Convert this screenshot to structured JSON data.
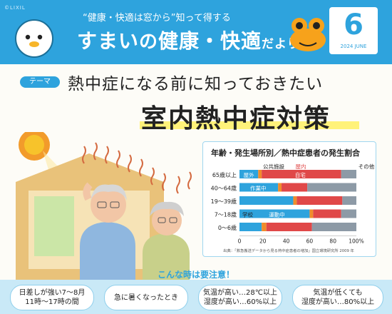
{
  "header": {
    "brand": "©LIXIL",
    "tagline": "“健康・快適は窓から”知って得する",
    "title_a": "すまい",
    "title_b": "の",
    "title_c": "健康・快適",
    "title_d": "だより",
    "month": "6",
    "month_sub": "2024 JUNE"
  },
  "theme": {
    "label": "テーマ",
    "headline1": "熱中症になる前に知っておきたい",
    "headline2": "室内熱中症対策"
  },
  "chart_data": {
    "type": "bar",
    "stacked": true,
    "orientation": "horizontal",
    "title": "年齢・発生場所別／熱中症患者の発生割合",
    "categories": [
      "65歳以上",
      "40〜64歳",
      "19〜39歳",
      "7〜18歳",
      "0〜6歳"
    ],
    "segment_colors": [
      "#2ea3dd",
      "#f08c2b",
      "#e04848",
      "#8d9aa6"
    ],
    "x_ticks": [
      "0",
      "20",
      "40",
      "60",
      "80",
      "100%"
    ],
    "xlim": [
      0,
      100
    ],
    "row_segments": [
      [
        16,
        3,
        68,
        13
      ],
      [
        33,
        3,
        22,
        42
      ],
      [
        46,
        3,
        39,
        12
      ],
      [
        60,
        3,
        24,
        13
      ],
      [
        19,
        4,
        39,
        38
      ]
    ],
    "annotations": {
      "public": "公共施設",
      "indoor": "屋内",
      "outdoor": "屋外",
      "home": "自宅",
      "other": "その他",
      "work": "作業中",
      "school": "学校",
      "sport": "運動中"
    },
    "source": "出典：「救急搬送データから見る熱中症患者の増加」国立環境研究所 2009 年"
  },
  "cards": {
    "heading": "こんな時は要注意！",
    "c1_l1": "日差しが強い7〜8月",
    "c1_l2": "11時〜17時の間",
    "c2_l1": "急に暑くなったとき",
    "c3_l1": "気温が高い…28℃以上",
    "c3_l2": "湿度が高い…60%以上",
    "c4_l1": "気温が低くても",
    "c4_l2": "湿度が高い…80%以上"
  }
}
